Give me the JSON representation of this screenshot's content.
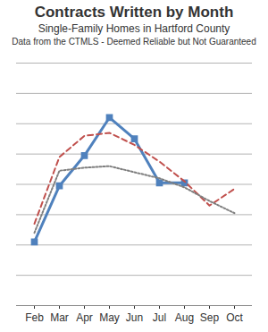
{
  "chart_data": {
    "type": "line",
    "title": "Contracts Written by Month",
    "subtitle": [
      "Single-Family Homes in Hartford County",
      "Data from the CTMLS - Deemed Reliable but Not Guaranteed"
    ],
    "categories": [
      "Feb",
      "Mar",
      "Apr",
      "May",
      "Jun",
      "Jul",
      "Aug",
      "Sep",
      "Oct"
    ],
    "series": [
      {
        "color": "#4f81bd",
        "line_style": "solid",
        "marker": "square",
        "values": [
          420,
          790,
          990,
          1240,
          1100,
          810,
          810,
          null,
          null
        ]
      },
      {
        "color": "#c0504d",
        "line_style": "dashed",
        "marker": "none",
        "values": [
          540,
          980,
          1120,
          1140,
          1060,
          950,
          820,
          660,
          770
        ]
      },
      {
        "color": "#7f7f7f",
        "line_style": "dotted",
        "marker": "none",
        "values": [
          480,
          890,
          910,
          920,
          880,
          840,
          780,
          690,
          610
        ]
      }
    ],
    "ylim": [
      0,
      1600
    ],
    "yticks": [
      0,
      200,
      400,
      600,
      800,
      1000,
      1200,
      1400,
      1600
    ],
    "grid": true,
    "tick_labels": "x"
  }
}
